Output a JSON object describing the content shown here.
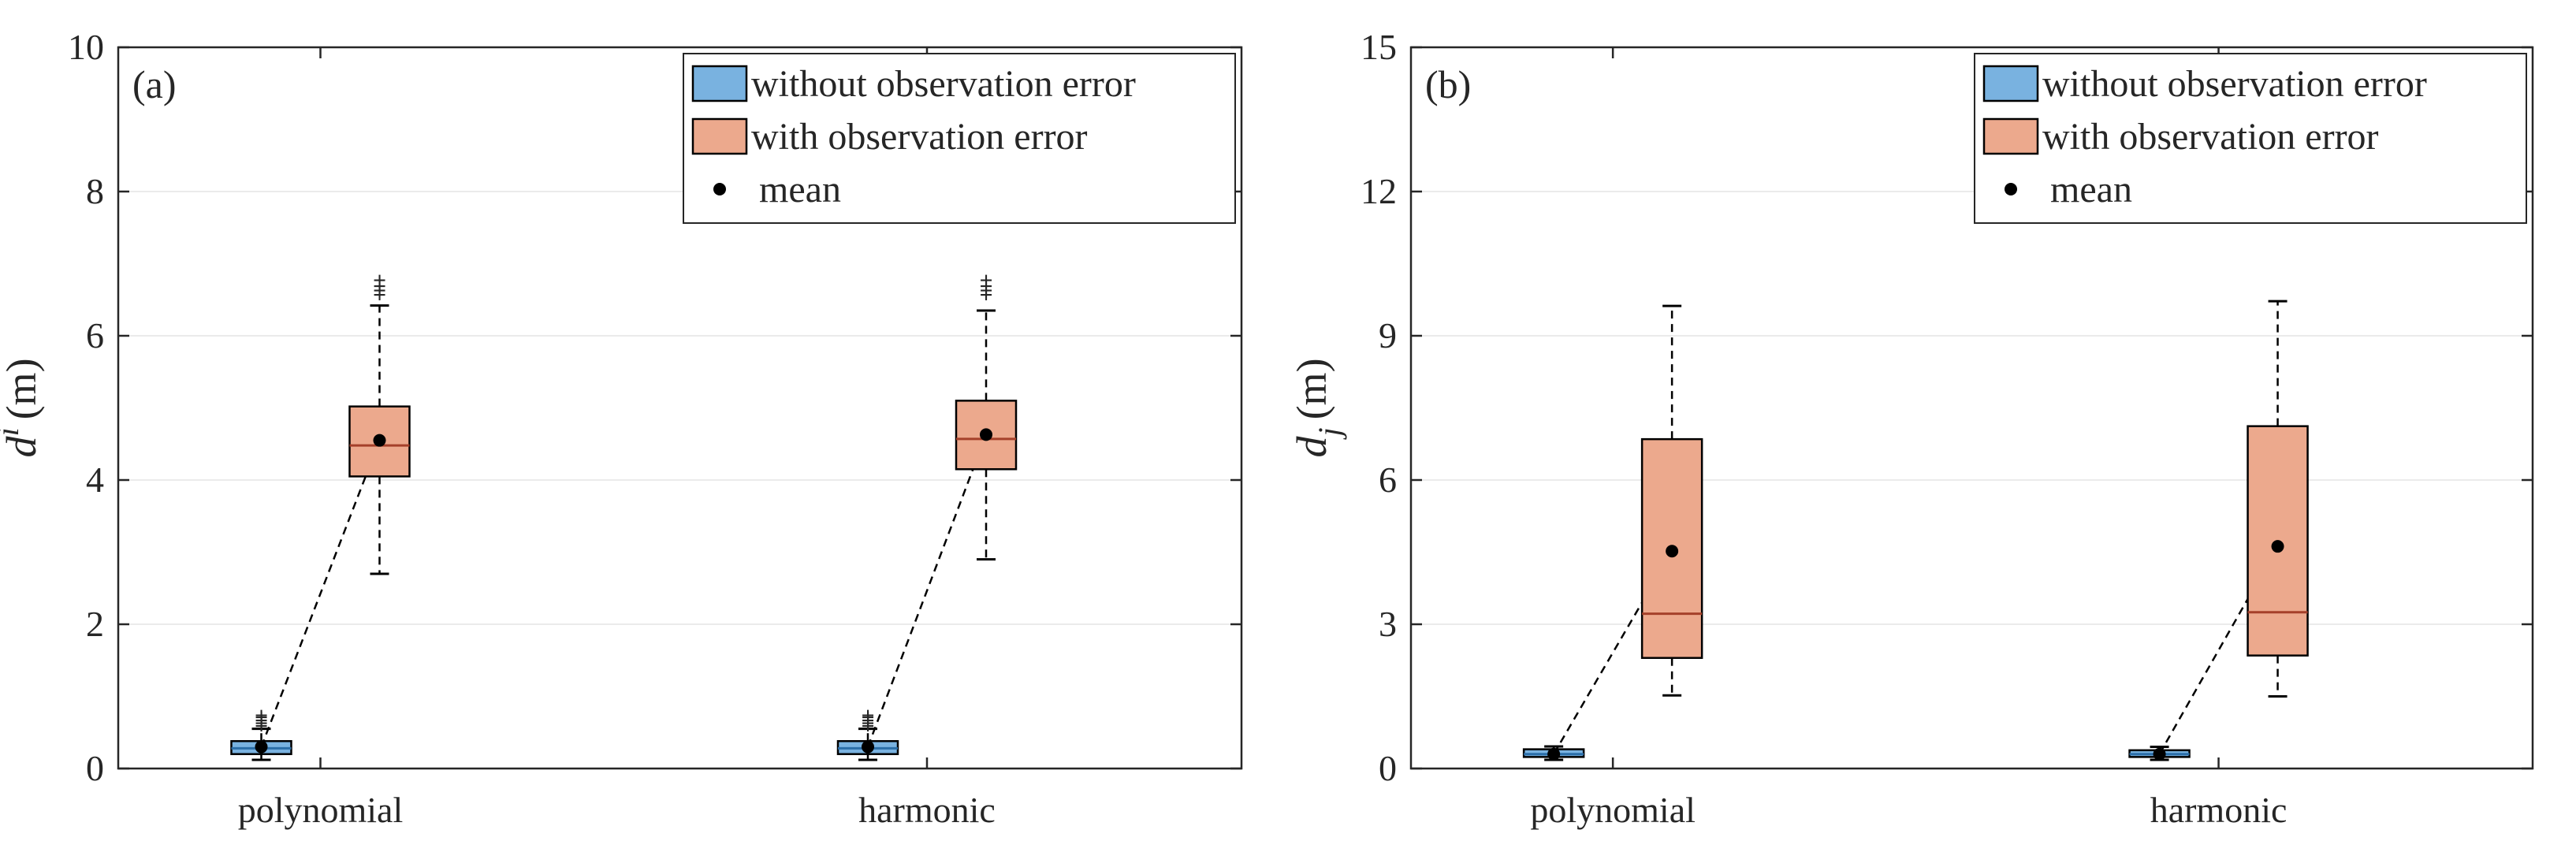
{
  "colors": {
    "without": "#79b2e0",
    "without_median": "#2b6ea8",
    "with": "#eca98d",
    "with_median": "#a5402a",
    "mean": "#000000",
    "axis": "#262626",
    "grid": "#ebebeb"
  },
  "legend": {
    "placement": "top-right",
    "items": [
      {
        "label": "without observation error",
        "type": "box",
        "color_key": "without"
      },
      {
        "label": "with observation error",
        "type": "box",
        "color_key": "with"
      },
      {
        "label": "mean",
        "type": "marker",
        "color_key": "mean"
      }
    ]
  },
  "chart_data": [
    {
      "type": "box",
      "panel_label": "(a)",
      "ylabel": "d",
      "ylabel_sup": "i",
      "ylabel_unit": "(m)",
      "categories": [
        "polynomial",
        "harmonic"
      ],
      "ylim": [
        0,
        10
      ],
      "yticks": [
        0,
        2,
        4,
        6,
        8,
        10
      ],
      "grid": "y",
      "series": [
        {
          "name": "without observation error",
          "boxes": [
            {
              "min": 0.12,
              "q1": 0.2,
              "median": 0.28,
              "q3": 0.38,
              "max": 0.55,
              "mean": 0.3,
              "outliers": [
                0.6,
                0.64,
                0.68,
                0.72,
                0.75
              ]
            },
            {
              "min": 0.12,
              "q1": 0.2,
              "median": 0.28,
              "q3": 0.38,
              "max": 0.55,
              "mean": 0.3,
              "outliers": [
                0.6,
                0.64,
                0.68,
                0.72,
                0.75
              ]
            }
          ]
        },
        {
          "name": "with observation error",
          "boxes": [
            {
              "min": 2.7,
              "q1": 4.05,
              "median": 4.48,
              "q3": 5.02,
              "max": 6.42,
              "mean": 4.55,
              "outliers": [
                6.58,
                6.64,
                6.7,
                6.78
              ]
            },
            {
              "min": 2.9,
              "q1": 4.15,
              "median": 4.57,
              "q3": 5.1,
              "max": 6.35,
              "mean": 4.63,
              "outliers": [
                6.58,
                6.64,
                6.7,
                6.78
              ]
            }
          ]
        }
      ]
    },
    {
      "type": "box",
      "panel_label": "(b)",
      "ylabel": "d",
      "ylabel_sub": "j",
      "ylabel_unit": "(m)",
      "categories": [
        "polynomial",
        "harmonic"
      ],
      "ylim": [
        0,
        15
      ],
      "yticks": [
        0,
        3,
        6,
        9,
        12,
        15
      ],
      "grid": "y",
      "series": [
        {
          "name": "without observation error",
          "boxes": [
            {
              "min": 0.18,
              "q1": 0.24,
              "median": 0.3,
              "q3": 0.4,
              "max": 0.46,
              "mean": 0.3,
              "outliers": []
            },
            {
              "min": 0.18,
              "q1": 0.24,
              "median": 0.3,
              "q3": 0.38,
              "max": 0.45,
              "mean": 0.3,
              "outliers": []
            }
          ]
        },
        {
          "name": "with observation error",
          "boxes": [
            {
              "min": 1.52,
              "q1": 2.3,
              "median": 3.22,
              "q3": 6.85,
              "max": 9.62,
              "mean": 4.52,
              "outliers": []
            },
            {
              "min": 1.5,
              "q1": 2.35,
              "median": 3.25,
              "q3": 7.12,
              "max": 9.72,
              "mean": 4.62,
              "outliers": []
            }
          ]
        }
      ]
    }
  ]
}
